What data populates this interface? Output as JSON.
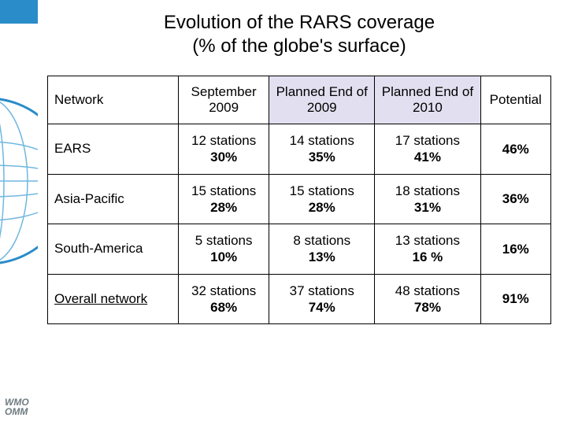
{
  "title_line1": "Evolution of the RARS coverage",
  "title_line2": "(% of the globe's surface)",
  "brand_line1": "WMO",
  "brand_line2": "OMM",
  "decor": {
    "stripe_color": "#2a8cc9",
    "globe_outer": "#2a8cc9",
    "globe_grid": "#6fb7e0",
    "globe_fill": "#ffffff"
  },
  "table": {
    "header_fill_bg": "#e2e0f0",
    "columns": [
      {
        "label": "Network",
        "align": "left",
        "fill": false
      },
      {
        "label": "September 2009",
        "align": "center",
        "fill": false
      },
      {
        "label": "Planned End of 2009",
        "align": "center",
        "fill": true
      },
      {
        "label": "Planned End of 2010",
        "align": "center",
        "fill": true
      },
      {
        "label": "Potential",
        "align": "center",
        "fill": false
      }
    ],
    "rows": [
      {
        "label": "EARS",
        "underline": false,
        "cells": [
          {
            "stations": "12 stations",
            "pct": "30%"
          },
          {
            "stations": "14 stations",
            "pct": "35%"
          },
          {
            "stations": "17 stations",
            "pct": "41%"
          },
          {
            "stations": "",
            "pct": "46%"
          }
        ]
      },
      {
        "label": "Asia-Pacific",
        "underline": false,
        "cells": [
          {
            "stations": "15 stations",
            "pct": "28%"
          },
          {
            "stations": "15 stations",
            "pct": "28%"
          },
          {
            "stations": "18 stations",
            "pct": "31%"
          },
          {
            "stations": "",
            "pct": "36%"
          }
        ]
      },
      {
        "label": "South-America",
        "underline": false,
        "cells": [
          {
            "stations": "5 stations",
            "pct": "10%"
          },
          {
            "stations": "8 stations",
            "pct": "13%"
          },
          {
            "stations": "13 stations",
            "pct": "16 %"
          },
          {
            "stations": "",
            "pct": "16%"
          }
        ]
      },
      {
        "label": "Overall network",
        "underline": true,
        "cells": [
          {
            "stations": "32 stations",
            "pct": "68%"
          },
          {
            "stations": "37 stations",
            "pct": "74%"
          },
          {
            "stations": "48 stations",
            "pct": "78%"
          },
          {
            "stations": "",
            "pct": "91%"
          }
        ]
      }
    ]
  }
}
